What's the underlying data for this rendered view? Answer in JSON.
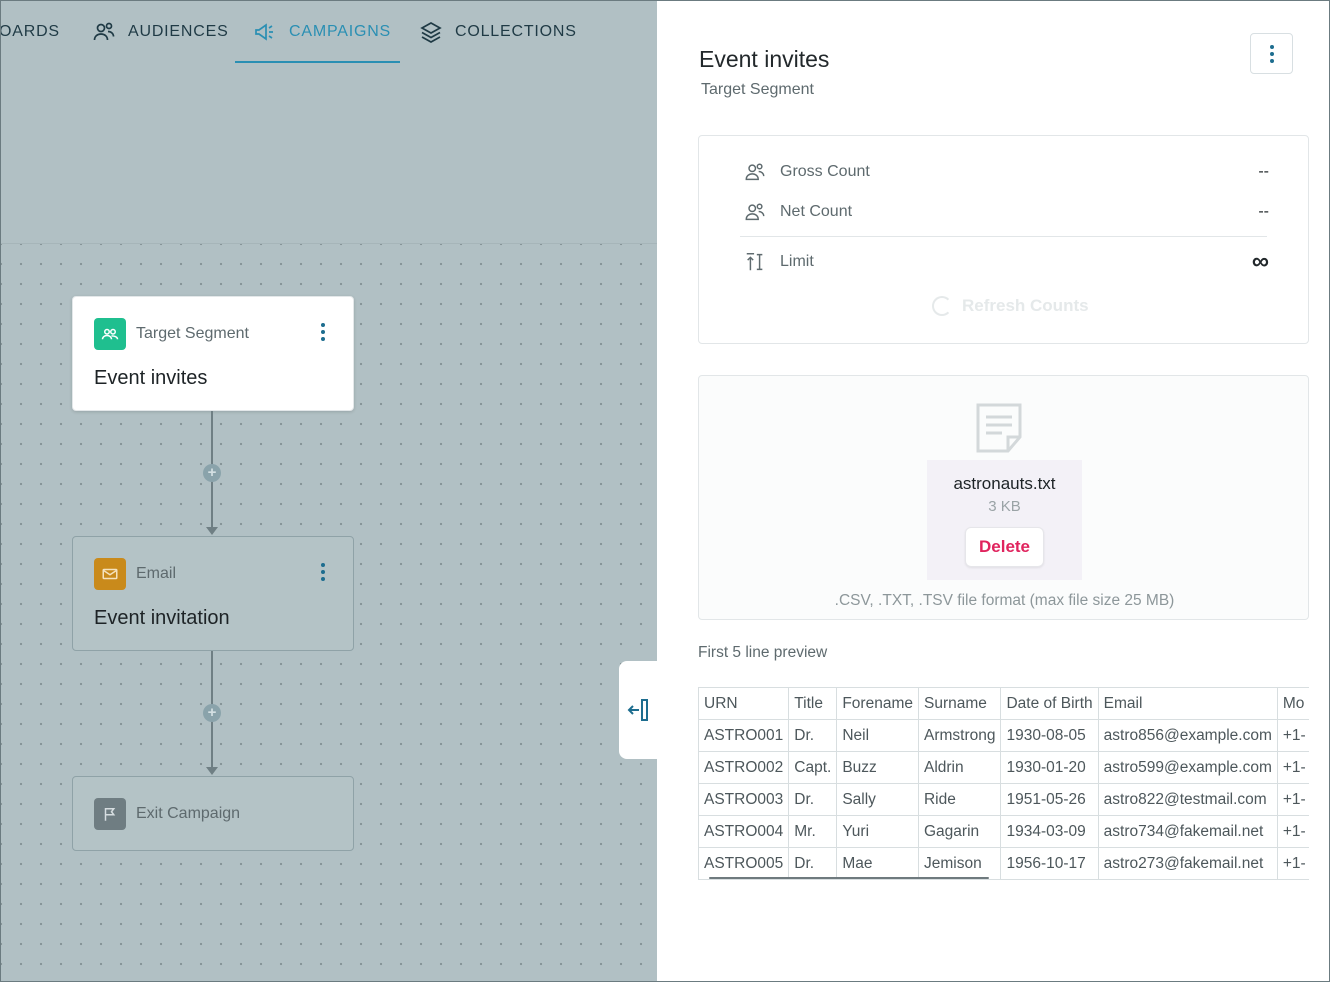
{
  "nav": {
    "items": [
      {
        "label": "OARDS",
        "icon": "dashboards-icon"
      },
      {
        "label": "AUDIENCES",
        "icon": "audiences-icon"
      },
      {
        "label": "CAMPAIGNS",
        "icon": "megaphone-icon",
        "active": true
      },
      {
        "label": "COLLECTIONS",
        "icon": "layers-icon"
      }
    ]
  },
  "workflow": {
    "nodes": [
      {
        "type": "Target Segment",
        "title": "Event invites",
        "icon": "audience-icon",
        "icon_color": "#1fbf8f",
        "selected": true
      },
      {
        "type": "Email",
        "title": "Event invitation",
        "icon": "envelope-icon",
        "icon_color": "#c98a1b"
      },
      {
        "type": "Exit Campaign",
        "title": "",
        "icon": "flag-icon",
        "icon_color": "#6f7d82"
      }
    ]
  },
  "panel": {
    "title": "Event invites",
    "subtitle": "Target Segment",
    "counts": {
      "gross_label": "Gross Count",
      "gross_value": "--",
      "net_label": "Net Count",
      "net_value": "--",
      "limit_label": "Limit",
      "limit_value": "∞",
      "refresh_label": "Refresh Counts"
    },
    "upload": {
      "file_name": "astronauts.txt",
      "file_size": "3 KB",
      "delete_label": "Delete",
      "format_hint": ".CSV, .TXT, .TSV file format (max file size 25 MB)"
    },
    "preview_label": "First 5 line preview",
    "preview": {
      "headers": [
        "URN",
        "Title",
        "Forename",
        "Surname",
        "Date of Birth",
        "Email",
        "Mo"
      ],
      "rows": [
        [
          "ASTRO001",
          "Dr.",
          "Neil",
          "Armstrong",
          "1930-08-05",
          "astro856@example.com",
          "+1-"
        ],
        [
          "ASTRO002",
          "Capt.",
          "Buzz",
          "Aldrin",
          "1930-01-20",
          "astro599@example.com",
          "+1-"
        ],
        [
          "ASTRO003",
          "Dr.",
          "Sally",
          "Ride",
          "1951-05-26",
          "astro822@testmail.com",
          "+1-"
        ],
        [
          "ASTRO004",
          "Mr.",
          "Yuri",
          "Gagarin",
          "1934-03-09",
          "astro734@fakemail.net",
          "+1-"
        ],
        [
          "ASTRO005",
          "Dr.",
          "Mae",
          "Jemison",
          "1956-10-17",
          "astro273@fakemail.net",
          "+1-"
        ]
      ]
    }
  },
  "colors": {
    "accent": "#2a8fb3",
    "danger": "#e0245e",
    "overlay": "#b1c0c4"
  }
}
